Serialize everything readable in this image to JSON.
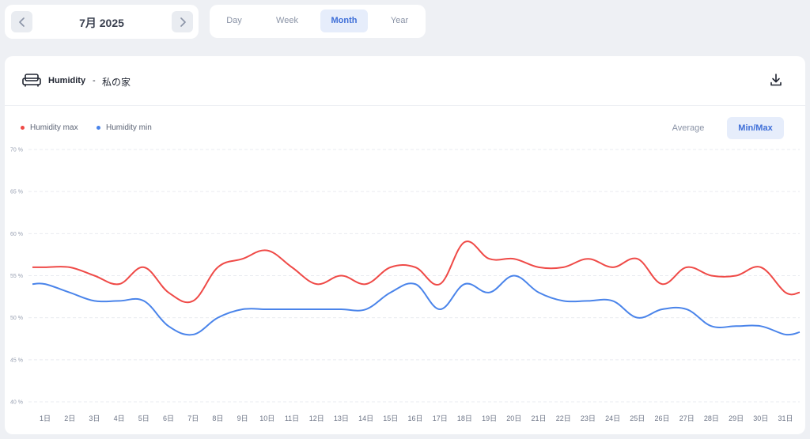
{
  "date_nav": {
    "label": "7月 2025"
  },
  "period_tabs": [
    "Day",
    "Week",
    "Month",
    "Year"
  ],
  "active_tab": "Month",
  "card": {
    "title": "Humidity",
    "separator": "-",
    "location": "私の家"
  },
  "view_modes": {
    "average": "Average",
    "minmax": "Min/Max",
    "active": "Min/Max"
  },
  "colors": {
    "max": "#ef4a47",
    "min": "#4a84ea",
    "accent": "#3f6fd8"
  },
  "chart_data": {
    "type": "line",
    "x": [
      "1日",
      "2日",
      "3日",
      "4日",
      "5日",
      "6日",
      "7日",
      "8日",
      "9日",
      "10日",
      "11日",
      "12日",
      "13日",
      "14日",
      "15日",
      "16日",
      "17日",
      "18日",
      "19日",
      "20日",
      "21日",
      "22日",
      "23日",
      "24日",
      "25日",
      "26日",
      "27日",
      "28日",
      "29日",
      "30日",
      "31日"
    ],
    "series": [
      {
        "name": "Humidity max",
        "color": "#ef4a47",
        "values": [
          56,
          56,
          55,
          54,
          56,
          53,
          52,
          56,
          57,
          58,
          56,
          54,
          55,
          54,
          56,
          56,
          54,
          59,
          57,
          57,
          56,
          56,
          57,
          56,
          57,
          54,
          56,
          55,
          55,
          56,
          53
        ]
      },
      {
        "name": "Humidity min",
        "color": "#4a84ea",
        "values": [
          54,
          53,
          52,
          52,
          52,
          49,
          48,
          50,
          51,
          51,
          51,
          51,
          51,
          51,
          53,
          54,
          51,
          54,
          53,
          55,
          53,
          52,
          52,
          52,
          50,
          51,
          51,
          49,
          49,
          49,
          48
        ]
      }
    ],
    "ylim": [
      40,
      70
    ],
    "yticks": [
      "40 %",
      "45 %",
      "50 %",
      "55 %",
      "60 %",
      "65 %",
      "70 %"
    ],
    "grid": true,
    "legend": "top-left"
  }
}
